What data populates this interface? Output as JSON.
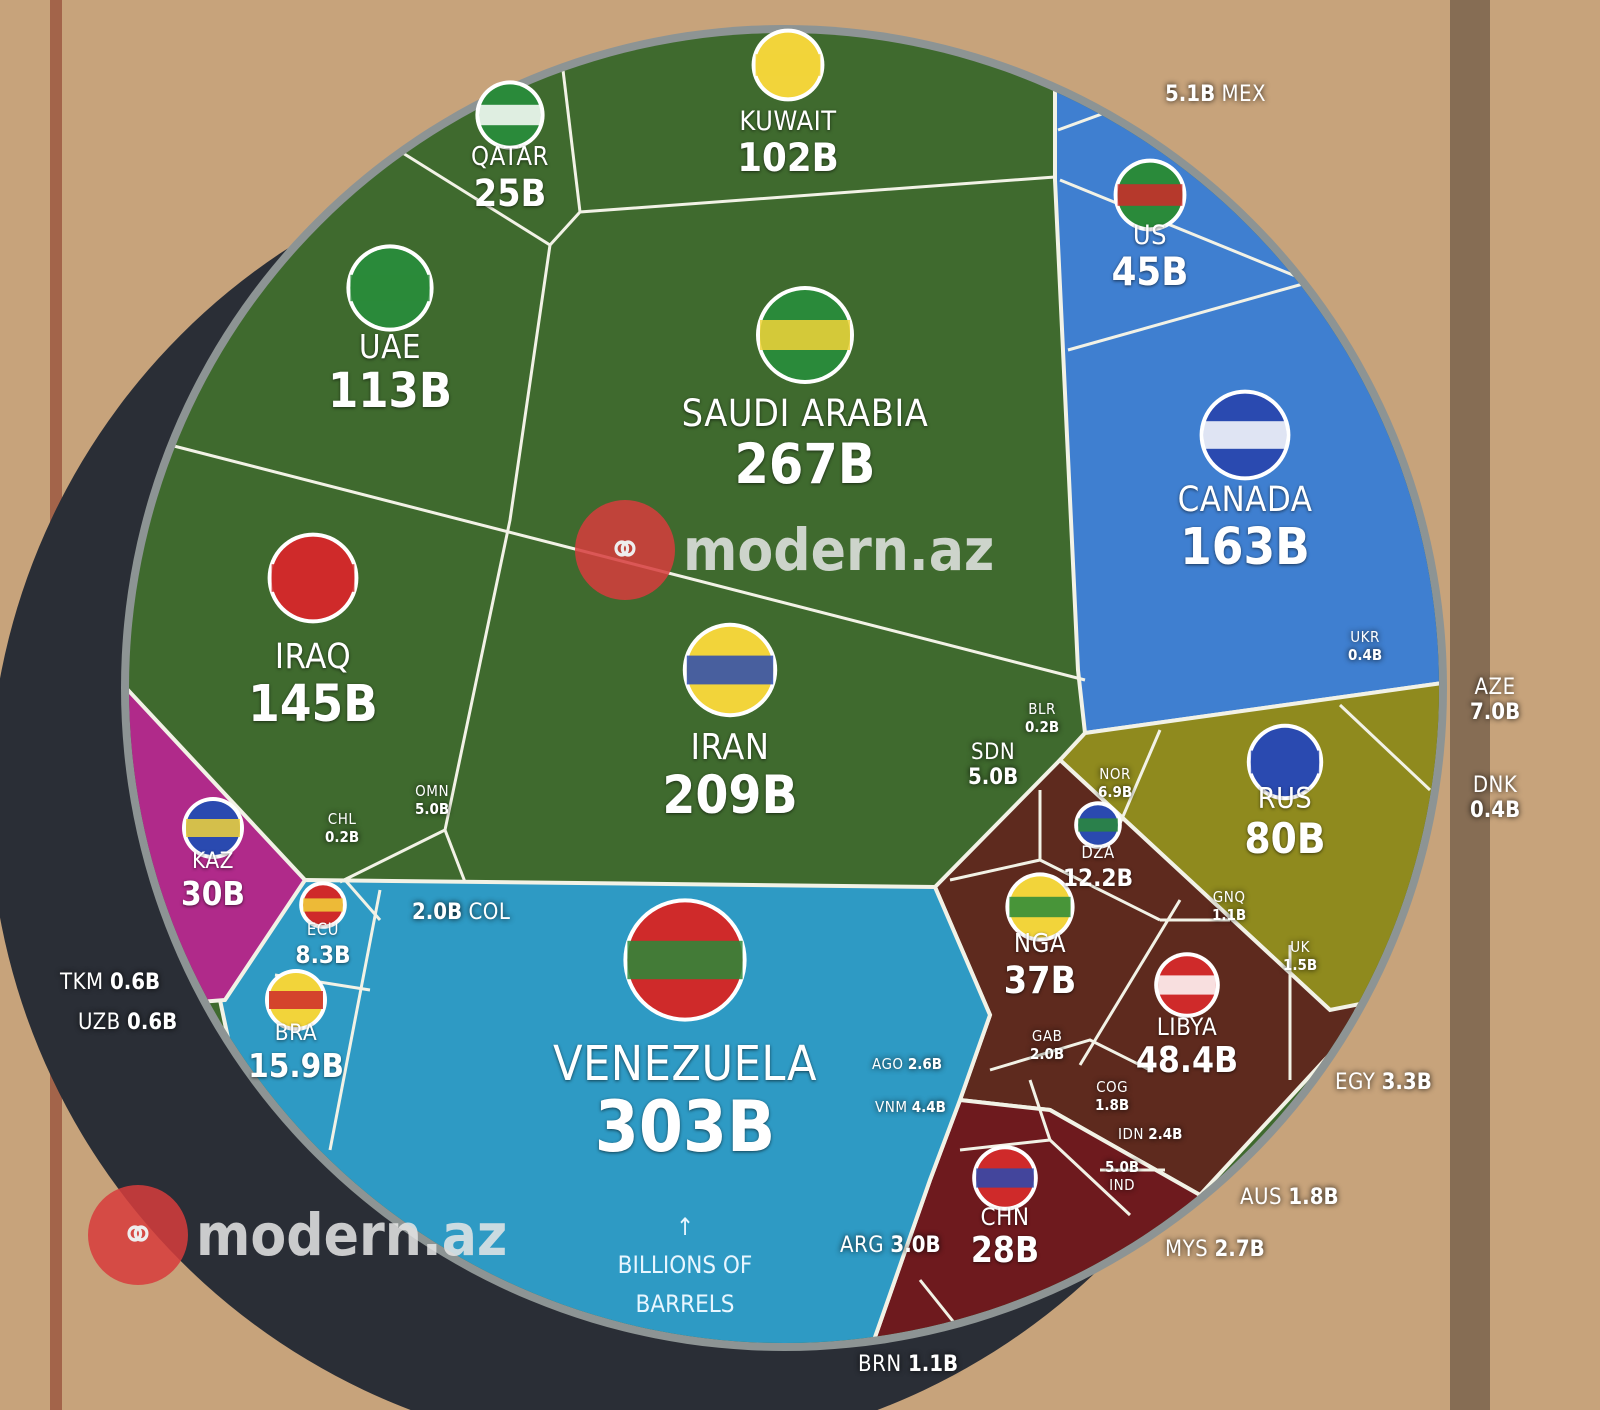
{
  "chart_data": {
    "type": "treemap",
    "layout": "voronoi circle",
    "unit_suffix": "B",
    "annotation": "BILLIONS OF BARRELS",
    "group_colors": {
      "middle_east": "#3f6a2e",
      "north_america": "#3f7fd0",
      "europe": "#8f8a1e",
      "africa": "#5e2a1e",
      "asia_pacific": "#6e1a1e",
      "south_america": "#2e9ac4",
      "central_asia": "#b02a8a"
    },
    "items": [
      {
        "name": "VENEZUELA",
        "value": 303,
        "label": "303B",
        "group": "south_america"
      },
      {
        "name": "SAUDI ARABIA",
        "value": 267,
        "label": "267B",
        "group": "middle_east"
      },
      {
        "name": "IRAN",
        "value": 209,
        "label": "209B",
        "group": "middle_east"
      },
      {
        "name": "CANADA",
        "value": 163,
        "label": "163B",
        "group": "north_america"
      },
      {
        "name": "IRAQ",
        "value": 145,
        "label": "145B",
        "group": "middle_east"
      },
      {
        "name": "UAE",
        "value": 113,
        "label": "113B",
        "group": "middle_east"
      },
      {
        "name": "KUWAIT",
        "value": 102,
        "label": "102B",
        "group": "middle_east"
      },
      {
        "name": "RUS",
        "value": 80,
        "label": "80B",
        "group": "europe"
      },
      {
        "name": "LIBYA",
        "value": 48.4,
        "label": "48.4B",
        "group": "africa"
      },
      {
        "name": "US",
        "value": 45,
        "label": "45B",
        "group": "north_america"
      },
      {
        "name": "NGA",
        "value": 37,
        "label": "37B",
        "group": "africa"
      },
      {
        "name": "KAZ",
        "value": 30,
        "label": "30B",
        "group": "central_asia"
      },
      {
        "name": "CHN",
        "value": 28,
        "label": "28B",
        "group": "asia_pacific"
      },
      {
        "name": "QATAR",
        "value": 25,
        "label": "25B",
        "group": "middle_east"
      },
      {
        "name": "BRA",
        "value": 15.9,
        "label": "15.9B",
        "group": "south_america"
      },
      {
        "name": "DZA",
        "value": 12.2,
        "label": "12.2B",
        "group": "africa"
      },
      {
        "name": "ECU",
        "value": 8.3,
        "label": "8.3B",
        "group": "south_america"
      },
      {
        "name": "AZE",
        "value": 7.0,
        "label": "7.0B",
        "group": "europe"
      },
      {
        "name": "NOR",
        "value": 6.9,
        "label": "6.9B",
        "group": "europe"
      },
      {
        "name": "MEX",
        "value": 5.1,
        "label": "5.1B",
        "group": "north_america"
      },
      {
        "name": "SDN",
        "value": 5.0,
        "label": "5.0B",
        "group": "africa"
      },
      {
        "name": "OMN",
        "value": 5.0,
        "label": "5.0B",
        "group": "middle_east"
      },
      {
        "name": "IND",
        "value": 5.0,
        "label": "5.0B",
        "group": "asia_pacific"
      },
      {
        "name": "VNM",
        "value": 4.4,
        "label": "4.4B",
        "group": "asia_pacific"
      },
      {
        "name": "EGY",
        "value": 3.3,
        "label": "3.3B",
        "group": "africa"
      },
      {
        "name": "ARG",
        "value": 3.0,
        "label": "3.0B",
        "group": "south_america"
      },
      {
        "name": "MYS",
        "value": 2.7,
        "label": "2.7B",
        "group": "asia_pacific"
      },
      {
        "name": "AGO",
        "value": 2.6,
        "label": "2.6B",
        "group": "africa"
      },
      {
        "name": "IDN",
        "value": 2.4,
        "label": "2.4B",
        "group": "asia_pacific"
      },
      {
        "name": "GAB",
        "value": 2.0,
        "label": "2.0B",
        "group": "africa"
      },
      {
        "name": "COL",
        "value": 2.0,
        "label": "2.0B",
        "group": "south_america"
      },
      {
        "name": "COG",
        "value": 1.8,
        "label": "1.8B",
        "group": "africa"
      },
      {
        "name": "AUS",
        "value": 1.8,
        "label": "1.8B",
        "group": "asia_pacific"
      },
      {
        "name": "UK",
        "value": 1.5,
        "label": "1.5B",
        "group": "europe"
      },
      {
        "name": "GNQ",
        "value": 1.1,
        "label": "1.1B",
        "group": "africa"
      },
      {
        "name": "BRN",
        "value": 1.1,
        "label": "1.1B",
        "group": "asia_pacific"
      },
      {
        "name": "TKM",
        "value": 0.6,
        "label": "0.6B",
        "group": "central_asia"
      },
      {
        "name": "UZB",
        "value": 0.6,
        "label": "0.6B",
        "group": "central_asia"
      },
      {
        "name": "UKR",
        "value": 0.4,
        "label": "0.4B",
        "group": "europe"
      },
      {
        "name": "DNK",
        "value": 0.4,
        "label": "0.4B",
        "group": "europe"
      },
      {
        "name": "CHL",
        "value": 0.2,
        "label": "0.2B",
        "group": "south_america"
      },
      {
        "name": "BLR",
        "value": 0.2,
        "label": "0.2B",
        "group": "europe"
      }
    ]
  },
  "watermark": "modern.az"
}
